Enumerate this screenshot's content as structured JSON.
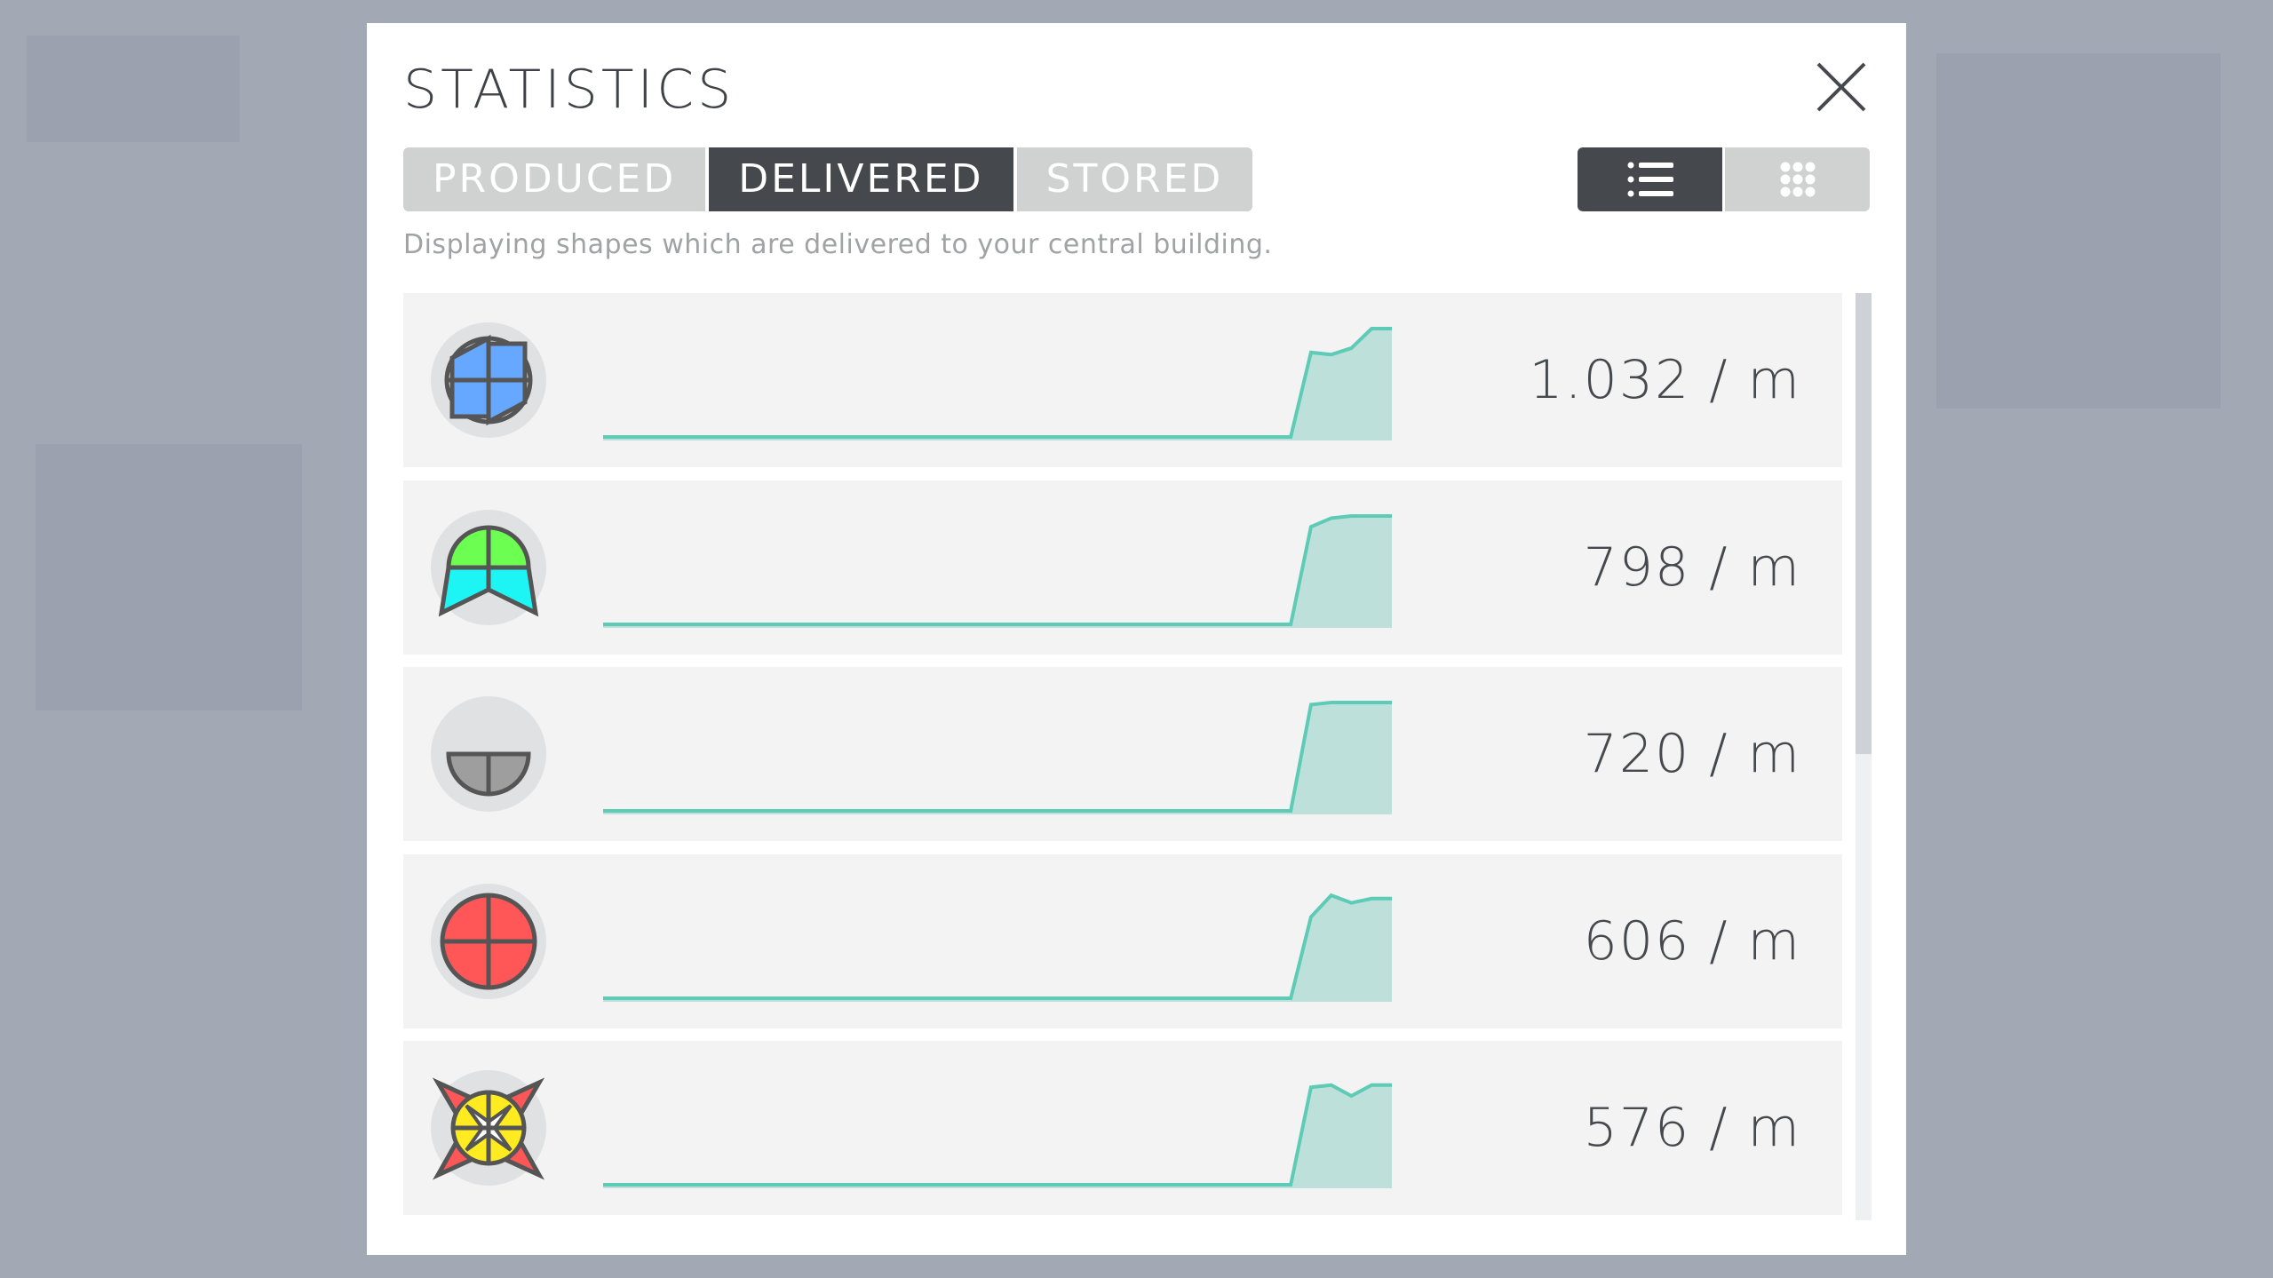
{
  "title": "STATISTICS",
  "tabs": [
    {
      "label": "PRODUCED",
      "active": false
    },
    {
      "label": "DELIVERED",
      "active": true
    },
    {
      "label": "STORED",
      "active": false
    }
  ],
  "views": [
    {
      "icon": "list-icon",
      "active": true
    },
    {
      "icon": "grid-icon",
      "active": false
    }
  ],
  "description": "Displaying shapes which are delivered to your central building.",
  "colors": {
    "chart_line": "#5ecbb6",
    "chart_fill": "#bde1da",
    "active_tab": "#45484c",
    "inactive_tab": "#d0d1d1"
  },
  "scroll_fraction_visible": 0.5,
  "rows": [
    {
      "shape": "blue-white-windmill-shape",
      "rate": "1.032 / m",
      "series": [
        0,
        0,
        0,
        0,
        0,
        0,
        0,
        0,
        0,
        0,
        0,
        0,
        0,
        0,
        0,
        0,
        0,
        0,
        0,
        0,
        0,
        0,
        0,
        0,
        0,
        0,
        0,
        0,
        0,
        0,
        0,
        0,
        0,
        0,
        0,
        0.78,
        0.76,
        0.82,
        1,
        1
      ]
    },
    {
      "shape": "green-cyan-umbrella-shape",
      "rate": "798 / m",
      "series": [
        0,
        0,
        0,
        0,
        0,
        0,
        0,
        0,
        0,
        0,
        0,
        0,
        0,
        0,
        0,
        0,
        0,
        0,
        0,
        0,
        0,
        0,
        0,
        0,
        0,
        0,
        0,
        0,
        0,
        0,
        0,
        0,
        0,
        0,
        0,
        0.9,
        0.98,
        1,
        1,
        1
      ]
    },
    {
      "shape": "grey-half-circle-shape",
      "rate": "720 / m",
      "series": [
        0,
        0,
        0,
        0,
        0,
        0,
        0,
        0,
        0,
        0,
        0,
        0,
        0,
        0,
        0,
        0,
        0,
        0,
        0,
        0,
        0,
        0,
        0,
        0,
        0,
        0,
        0,
        0,
        0,
        0,
        0,
        0,
        0,
        0,
        0,
        0.98,
        1,
        1,
        1,
        1
      ]
    },
    {
      "shape": "red-circle-shape",
      "rate": "606 / m",
      "series": [
        0,
        0,
        0,
        0,
        0,
        0,
        0,
        0,
        0,
        0,
        0,
        0,
        0,
        0,
        0,
        0,
        0,
        0,
        0,
        0,
        0,
        0,
        0,
        0,
        0,
        0,
        0,
        0,
        0,
        0,
        0,
        0,
        0,
        0,
        0,
        0.75,
        0.95,
        0.88,
        0.92,
        0.92
      ]
    },
    {
      "shape": "yellow-red-star-shape",
      "rate": "576 / m",
      "series": [
        0,
        0,
        0,
        0,
        0,
        0,
        0,
        0,
        0,
        0,
        0,
        0,
        0,
        0,
        0,
        0,
        0,
        0,
        0,
        0,
        0,
        0,
        0,
        0,
        0,
        0,
        0,
        0,
        0,
        0,
        0,
        0,
        0,
        0,
        0,
        0.9,
        0.92,
        0.82,
        0.92,
        0.92
      ]
    }
  ]
}
